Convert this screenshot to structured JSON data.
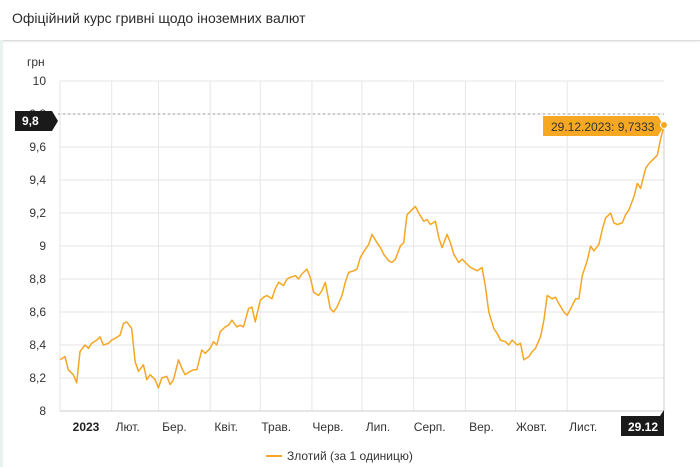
{
  "header": {
    "title": "Офіційний курс гривні щодо іноземних валют"
  },
  "colors": {
    "series": "#f5a623",
    "tooltip_bg": "#f7a823",
    "badge_bg": "#1a1a1a",
    "grid": "#e6e6e6"
  },
  "chart_data": {
    "type": "line",
    "ylabel": "грн",
    "ylim": [
      8,
      10
    ],
    "yticks": [
      "10",
      "9,8",
      "9,6",
      "9,4",
      "9,2",
      "9",
      "8,8",
      "8,6",
      "8,4",
      "8,2",
      "8"
    ],
    "ytick_values": [
      10,
      9.8,
      9.6,
      9.4,
      9.2,
      9.0,
      8.8,
      8.6,
      8.4,
      8.2,
      8.0
    ],
    "xlim": [
      "2023-01-01",
      "2023-12-29"
    ],
    "xticks": [
      {
        "label": "2023",
        "date": "2023-01-01"
      },
      {
        "label": "Лют.",
        "date": "2023-02-01"
      },
      {
        "label": "Бер.",
        "date": "2023-03-01"
      },
      {
        "label": "Квіт.",
        "date": "2023-04-01"
      },
      {
        "label": "Трав.",
        "date": "2023-05-01"
      },
      {
        "label": "Черв.",
        "date": "2023-06-01"
      },
      {
        "label": "Лип.",
        "date": "2023-07-01"
      },
      {
        "label": "Серп.",
        "date": "2023-08-01"
      },
      {
        "label": "Вер.",
        "date": "2023-09-01"
      },
      {
        "label": "Жовт.",
        "date": "2023-10-01"
      },
      {
        "label": "Лист.",
        "date": "2023-11-01"
      }
    ],
    "last_label": "29.12",
    "highlighted_y_label": "9,8",
    "tooltip": "29.12.2023: 9,7333",
    "legend": [
      "Злотий (за 1 одиницю)"
    ],
    "legend_position": "bottom-center",
    "series": [
      {
        "name": "Злотий (за 1 одиницю)",
        "points": [
          [
            "2023-01-01",
            8.31
          ],
          [
            "2023-01-04",
            8.33
          ],
          [
            "2023-01-06",
            8.25
          ],
          [
            "2023-01-09",
            8.22
          ],
          [
            "2023-01-11",
            8.17
          ],
          [
            "2023-01-13",
            8.36
          ],
          [
            "2023-01-16",
            8.4
          ],
          [
            "2023-01-18",
            8.38
          ],
          [
            "2023-01-20",
            8.41
          ],
          [
            "2023-01-23",
            8.43
          ],
          [
            "2023-01-25",
            8.45
          ],
          [
            "2023-01-27",
            8.4
          ],
          [
            "2023-01-30",
            8.41
          ],
          [
            "2023-02-01",
            8.43
          ],
          [
            "2023-02-03",
            8.44
          ],
          [
            "2023-02-06",
            8.46
          ],
          [
            "2023-02-08",
            8.53
          ],
          [
            "2023-02-10",
            8.54
          ],
          [
            "2023-02-13",
            8.5
          ],
          [
            "2023-02-15",
            8.3
          ],
          [
            "2023-02-17",
            8.24
          ],
          [
            "2023-02-20",
            8.28
          ],
          [
            "2023-02-22",
            8.19
          ],
          [
            "2023-02-24",
            8.22
          ],
          [
            "2023-02-27",
            8.19
          ],
          [
            "2023-03-01",
            8.14
          ],
          [
            "2023-03-03",
            8.2
          ],
          [
            "2023-03-06",
            8.21
          ],
          [
            "2023-03-08",
            8.16
          ],
          [
            "2023-03-10",
            8.19
          ],
          [
            "2023-03-13",
            8.31
          ],
          [
            "2023-03-15",
            8.26
          ],
          [
            "2023-03-17",
            8.22
          ],
          [
            "2023-03-20",
            8.24
          ],
          [
            "2023-03-22",
            8.25
          ],
          [
            "2023-03-24",
            8.25
          ],
          [
            "2023-03-27",
            8.37
          ],
          [
            "2023-03-29",
            8.35
          ],
          [
            "2023-04-01",
            8.38
          ],
          [
            "2023-04-03",
            8.42
          ],
          [
            "2023-04-05",
            8.4
          ],
          [
            "2023-04-07",
            8.48
          ],
          [
            "2023-04-10",
            8.51
          ],
          [
            "2023-04-12",
            8.52
          ],
          [
            "2023-04-14",
            8.55
          ],
          [
            "2023-04-17",
            8.51
          ],
          [
            "2023-04-19",
            8.52
          ],
          [
            "2023-04-21",
            8.51
          ],
          [
            "2023-04-24",
            8.62
          ],
          [
            "2023-04-26",
            8.63
          ],
          [
            "2023-04-28",
            8.54
          ],
          [
            "2023-05-01",
            8.67
          ],
          [
            "2023-05-03",
            8.69
          ],
          [
            "2023-05-05",
            8.7
          ],
          [
            "2023-05-08",
            8.68
          ],
          [
            "2023-05-10",
            8.74
          ],
          [
            "2023-05-12",
            8.78
          ],
          [
            "2023-05-15",
            8.76
          ],
          [
            "2023-05-17",
            8.8
          ],
          [
            "2023-05-19",
            8.81
          ],
          [
            "2023-05-22",
            8.82
          ],
          [
            "2023-05-24",
            8.8
          ],
          [
            "2023-05-26",
            8.83
          ],
          [
            "2023-05-29",
            8.86
          ],
          [
            "2023-05-31",
            8.81
          ],
          [
            "2023-06-02",
            8.72
          ],
          [
            "2023-06-05",
            8.7
          ],
          [
            "2023-06-07",
            8.73
          ],
          [
            "2023-06-09",
            8.78
          ],
          [
            "2023-06-12",
            8.62
          ],
          [
            "2023-06-14",
            8.6
          ],
          [
            "2023-06-16",
            8.63
          ],
          [
            "2023-06-19",
            8.7
          ],
          [
            "2023-06-21",
            8.78
          ],
          [
            "2023-06-23",
            8.84
          ],
          [
            "2023-06-26",
            8.85
          ],
          [
            "2023-06-28",
            8.86
          ],
          [
            "2023-06-30",
            8.93
          ],
          [
            "2023-07-03",
            8.98
          ],
          [
            "2023-07-05",
            9.01
          ],
          [
            "2023-07-07",
            9.07
          ],
          [
            "2023-07-10",
            9.02
          ],
          [
            "2023-07-12",
            8.99
          ],
          [
            "2023-07-14",
            8.95
          ],
          [
            "2023-07-17",
            8.91
          ],
          [
            "2023-07-19",
            8.9
          ],
          [
            "2023-07-21",
            8.92
          ],
          [
            "2023-07-24",
            9.0
          ],
          [
            "2023-07-26",
            9.02
          ],
          [
            "2023-07-28",
            9.19
          ],
          [
            "2023-07-31",
            9.22
          ],
          [
            "2023-08-02",
            9.24
          ],
          [
            "2023-08-04",
            9.2
          ],
          [
            "2023-08-07",
            9.15
          ],
          [
            "2023-08-09",
            9.16
          ],
          [
            "2023-08-11",
            9.13
          ],
          [
            "2023-08-14",
            9.15
          ],
          [
            "2023-08-16",
            9.05
          ],
          [
            "2023-08-18",
            8.99
          ],
          [
            "2023-08-21",
            9.07
          ],
          [
            "2023-08-23",
            9.02
          ],
          [
            "2023-08-25",
            8.95
          ],
          [
            "2023-08-28",
            8.9
          ],
          [
            "2023-08-30",
            8.92
          ],
          [
            "2023-09-01",
            8.9
          ],
          [
            "2023-09-04",
            8.87
          ],
          [
            "2023-09-06",
            8.86
          ],
          [
            "2023-09-08",
            8.85
          ],
          [
            "2023-09-11",
            8.87
          ],
          [
            "2023-09-13",
            8.75
          ],
          [
            "2023-09-15",
            8.6
          ],
          [
            "2023-09-18",
            8.5
          ],
          [
            "2023-09-20",
            8.47
          ],
          [
            "2023-09-22",
            8.43
          ],
          [
            "2023-09-25",
            8.42
          ],
          [
            "2023-09-27",
            8.4
          ],
          [
            "2023-09-29",
            8.43
          ],
          [
            "2023-10-02",
            8.4
          ],
          [
            "2023-10-04",
            8.41
          ],
          [
            "2023-10-06",
            8.31
          ],
          [
            "2023-10-09",
            8.33
          ],
          [
            "2023-10-11",
            8.36
          ],
          [
            "2023-10-13",
            8.38
          ],
          [
            "2023-10-16",
            8.45
          ],
          [
            "2023-10-18",
            8.55
          ],
          [
            "2023-10-20",
            8.7
          ],
          [
            "2023-10-23",
            8.68
          ],
          [
            "2023-10-25",
            8.69
          ],
          [
            "2023-10-27",
            8.65
          ],
          [
            "2023-10-30",
            8.6
          ],
          [
            "2023-11-01",
            8.58
          ],
          [
            "2023-11-03",
            8.62
          ],
          [
            "2023-11-06",
            8.68
          ],
          [
            "2023-11-08",
            8.68
          ],
          [
            "2023-11-10",
            8.82
          ],
          [
            "2023-11-13",
            8.91
          ],
          [
            "2023-11-15",
            9.0
          ],
          [
            "2023-11-17",
            8.97
          ],
          [
            "2023-11-20",
            9.01
          ],
          [
            "2023-11-22",
            9.1
          ],
          [
            "2023-11-24",
            9.17
          ],
          [
            "2023-11-27",
            9.2
          ],
          [
            "2023-11-29",
            9.14
          ],
          [
            "2023-12-01",
            9.13
          ],
          [
            "2023-12-04",
            9.14
          ],
          [
            "2023-12-06",
            9.19
          ],
          [
            "2023-12-08",
            9.22
          ],
          [
            "2023-12-11",
            9.3
          ],
          [
            "2023-12-13",
            9.38
          ],
          [
            "2023-12-15",
            9.35
          ],
          [
            "2023-12-18",
            9.47
          ],
          [
            "2023-12-20",
            9.5
          ],
          [
            "2023-12-22",
            9.52
          ],
          [
            "2023-12-25",
            9.55
          ],
          [
            "2023-12-27",
            9.65
          ],
          [
            "2023-12-29",
            9.7333
          ]
        ]
      }
    ]
  }
}
